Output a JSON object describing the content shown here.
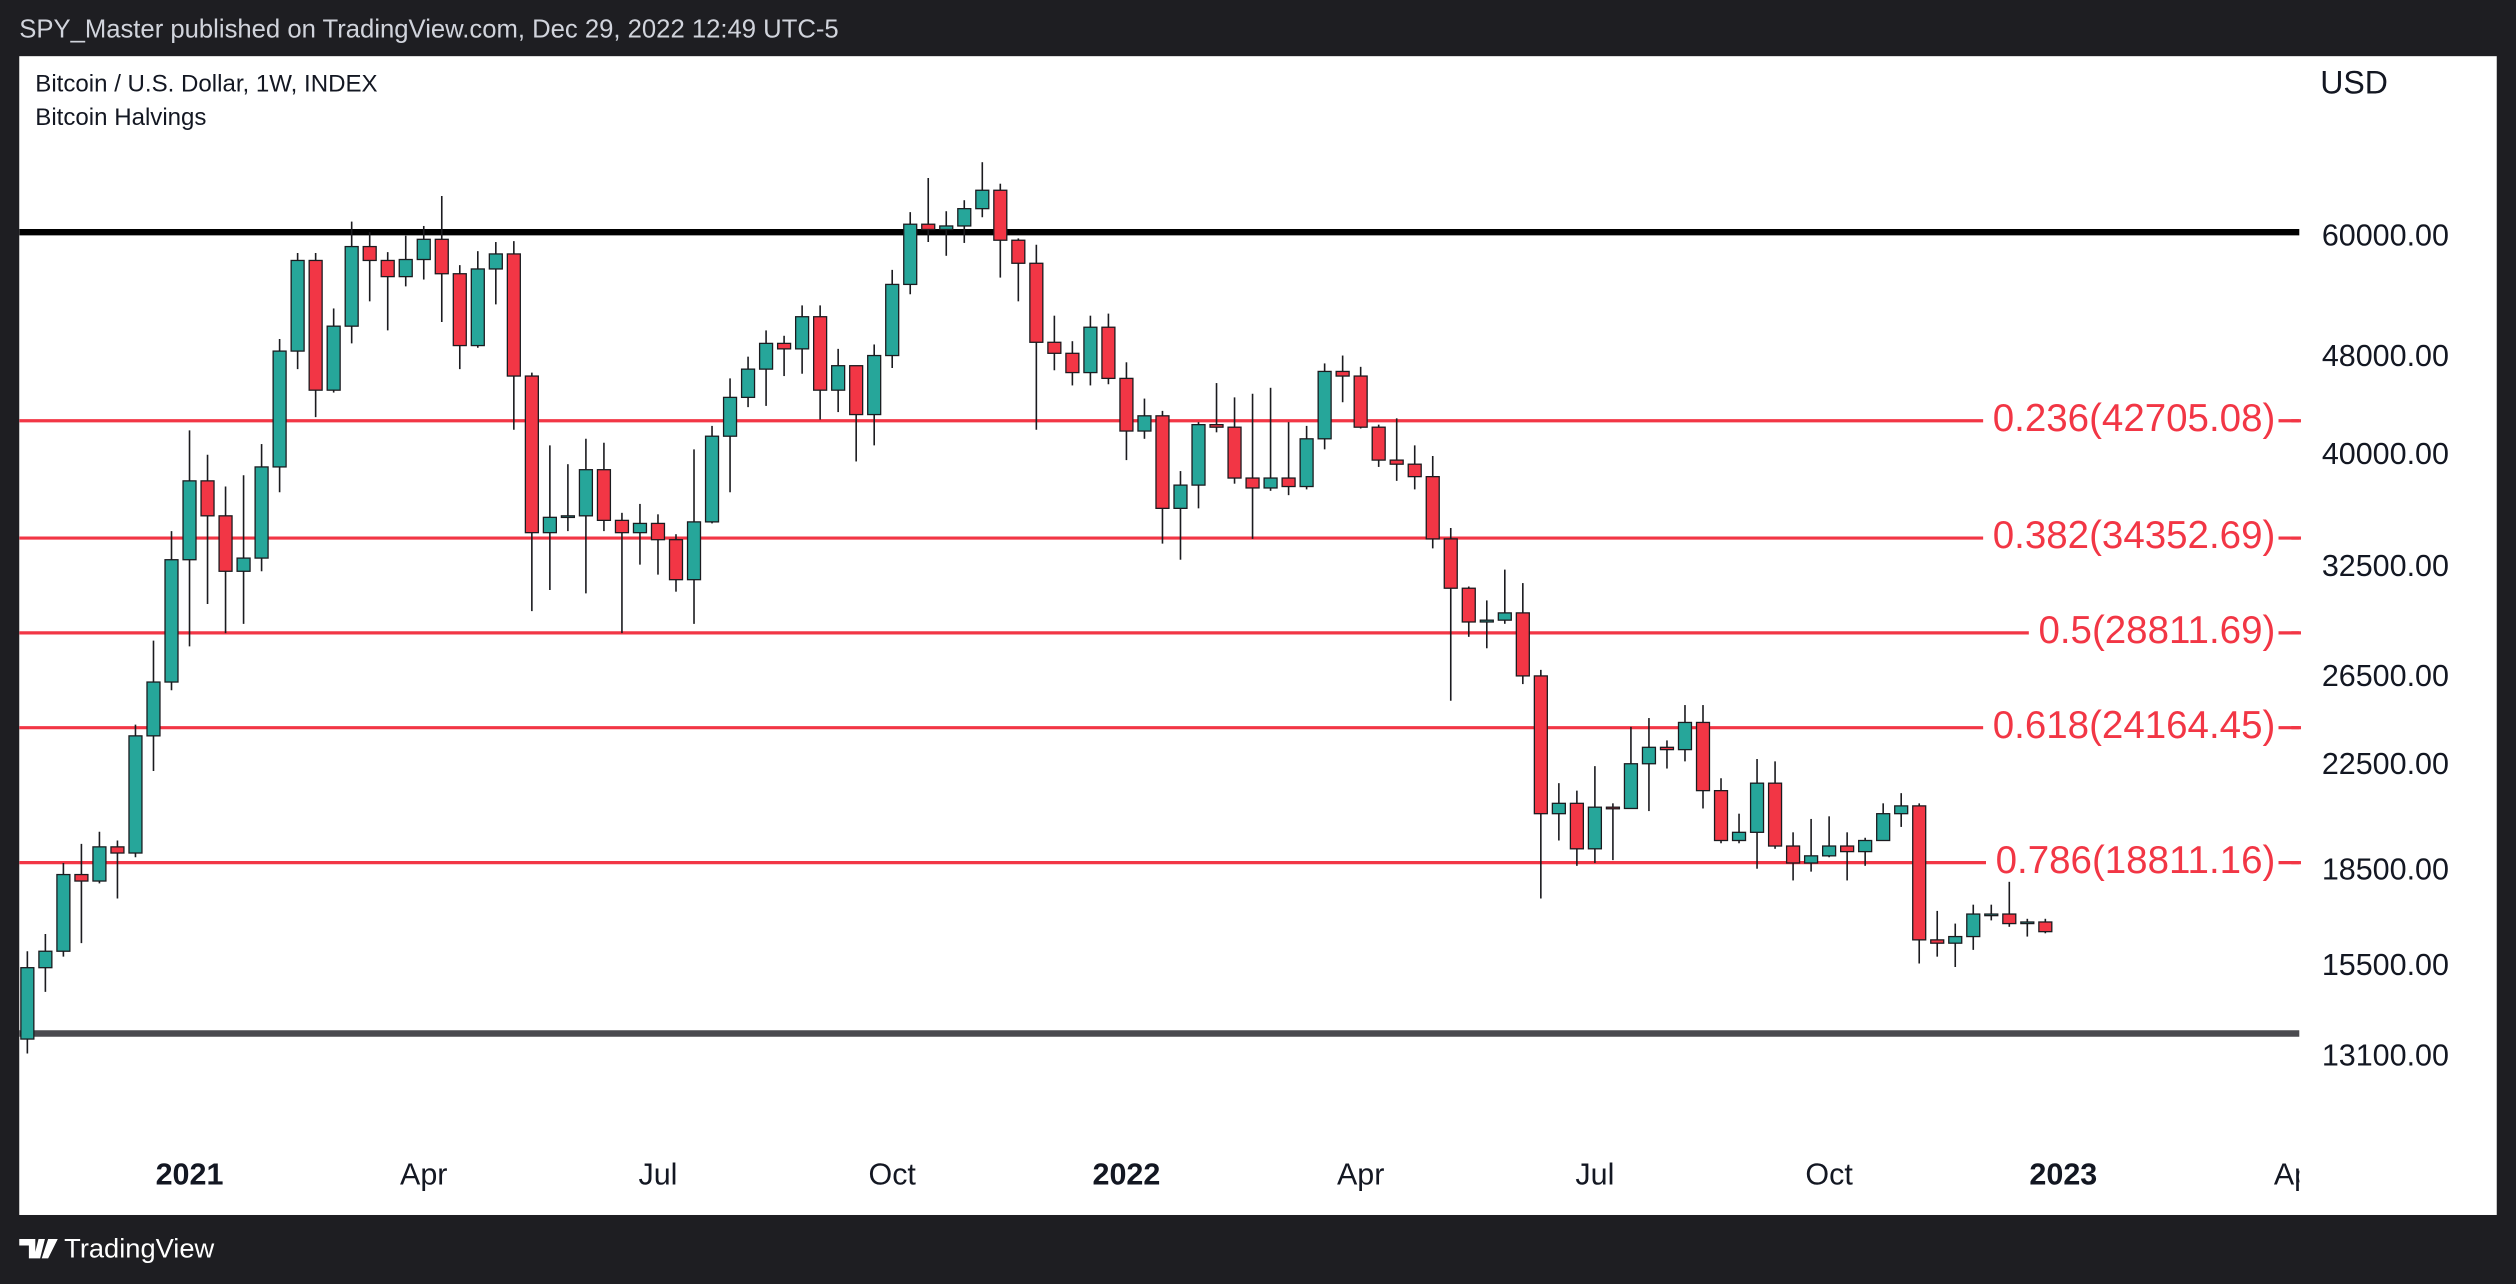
{
  "header": {
    "text": "SPY_Master published on TradingView.com, Dec 29, 2022 12:49 UTC-5"
  },
  "chart_data": {
    "type": "candlestick",
    "title": "Bitcoin / U.S. Dollar, 1W, INDEX",
    "subtitle": "Bitcoin Halvings",
    "y_axis_label": "USD",
    "up_color": "#26a69a",
    "down_color": "#f23645",
    "log_scale": true,
    "ylim": [
      11087,
      84000
    ],
    "yticks": [
      {
        "value": 60000,
        "label": "60000.00"
      },
      {
        "value": 48000,
        "label": "48000.00"
      },
      {
        "value": 40000,
        "label": "40000.00"
      },
      {
        "value": 32500,
        "label": "32500.00"
      },
      {
        "value": 26500,
        "label": "26500.00"
      },
      {
        "value": 22500,
        "label": "22500.00"
      },
      {
        "value": 18500,
        "label": "18500.00"
      },
      {
        "value": 15500,
        "label": "15500.00"
      },
      {
        "value": 13100,
        "label": "13100.00"
      }
    ],
    "xlim": [
      -0.45,
      126.1
    ],
    "xticks": [
      {
        "value": 9,
        "label": "2021"
      },
      {
        "value": 22,
        "label": "Apr"
      },
      {
        "value": 35,
        "label": "Jul"
      },
      {
        "value": 48,
        "label": "Oct"
      },
      {
        "value": 61,
        "label": "2022"
      },
      {
        "value": 74,
        "label": "Apr"
      },
      {
        "value": 87,
        "label": "Jul"
      },
      {
        "value": 100,
        "label": "Oct"
      },
      {
        "value": 113,
        "label": "2023"
      },
      {
        "value": 126,
        "label": "Apr"
      }
    ],
    "open": [
      13560,
      15480,
      15960,
      18400,
      18180,
      19370,
      19150,
      23800,
      26300,
      33000,
      38200,
      35800,
      32300,
      33100,
      39200,
      48600,
      57500,
      45200,
      50900,
      59000,
      57500,
      55800,
      57600,
      59800,
      56100,
      49100,
      56600,
      58200,
      46400,
      34700,
      35700,
      35800,
      39000,
      35500,
      34700,
      35300,
      34250,
      31800,
      35400,
      41500,
      44600,
      47000,
      49300,
      48800,
      51800,
      45200,
      47300,
      43200,
      48200,
      55000,
      61500,
      60900,
      61300,
      63300,
      65500,
      59700,
      57200,
      49400,
      48400,
      46700,
      50800,
      46200,
      41900,
      43100,
      36300,
      37900,
      42400,
      42200,
      38400,
      37700,
      38400,
      37800,
      41300,
      46800,
      46400,
      42200,
      39700,
      39400,
      38500,
      34300,
      31300,
      29400,
      29500,
      29900,
      26600,
      20600,
      21000,
      19300,
      20850,
      20800,
      22600,
      23300,
      23200,
      24400,
      21500,
      19600,
      19900,
      21800,
      19400,
      18800,
      19050,
      19400,
      19200,
      19600,
      20600,
      20900,
      16300,
      16200,
      16400,
      17100,
      17100,
      16800,
      16850
    ],
    "high": [
      15960,
      16480,
      18800,
      19480,
      19920,
      19600,
      24300,
      28400,
      34800,
      41950,
      40100,
      37800,
      38600,
      40900,
      49700,
      58300,
      58300,
      52600,
      61800,
      60600,
      58400,
      60200,
      61300,
      64800,
      57000,
      58500,
      59500,
      59600,
      46700,
      40800,
      39400,
      41300,
      41000,
      36000,
      36600,
      35900,
      34600,
      40500,
      42300,
      46200,
      48100,
      50500,
      50000,
      52900,
      52900,
      48800,
      47300,
      49200,
      56500,
      62900,
      67000,
      63000,
      64300,
      69000,
      66300,
      59900,
      59200,
      51900,
      49500,
      51900,
      52100,
      47600,
      44500,
      43500,
      38900,
      42600,
      45800,
      44600,
      44900,
      45400,
      42600,
      42300,
      47500,
      48200,
      47200,
      42400,
      42900,
      40800,
      40000,
      35000,
      31400,
      30600,
      32400,
      31600,
      26900,
      21800,
      21500,
      22500,
      21000,
      24200,
      24600,
      23600,
      25200,
      25200,
      22000,
      20600,
      22800,
      22700,
      19900,
      20400,
      20500,
      19900,
      19700,
      21000,
      21400,
      21000,
      17200,
      16800,
      17400,
      17400,
      18400,
      16950,
      16950
    ],
    "low": [
      13200,
      14800,
      15800,
      16200,
      18100,
      17600,
      19000,
      22300,
      25900,
      28100,
      30400,
      28800,
      29300,
      32300,
      37400,
      47000,
      43000,
      45000,
      49300,
      53300,
      50500,
      54800,
      55500,
      51300,
      47000,
      48900,
      53000,
      42000,
      30000,
      31200,
      34800,
      31000,
      34800,
      28800,
      32700,
      32100,
      31100,
      29300,
      35300,
      37400,
      43800,
      43900,
      46400,
      46600,
      42800,
      43400,
      39600,
      40800,
      47100,
      54000,
      59500,
      58000,
      59400,
      62300,
      55700,
      53300,
      42000,
      46900,
      45600,
      45600,
      45700,
      39700,
      41300,
      34000,
      33000,
      36300,
      41800,
      38000,
      34300,
      37500,
      37200,
      37600,
      40500,
      44200,
      42100,
      39200,
      38200,
      37600,
      33700,
      25400,
      28600,
      28000,
      29300,
      26200,
      17600,
      19600,
      18700,
      18800,
      18900,
      20800,
      20700,
      22400,
      22700,
      20800,
      19500,
      19500,
      18600,
      19300,
      18200,
      18500,
      19000,
      18200,
      18700,
      19600,
      20100,
      15600,
      15800,
      15500,
      16000,
      16900,
      16700,
      16400,
      16500
    ],
    "close": [
      15480,
      15960,
      18400,
      18180,
      19370,
      19150,
      23800,
      26300,
      33000,
      38200,
      35800,
      32300,
      33100,
      39200,
      48600,
      57500,
      45200,
      50900,
      59000,
      57500,
      55800,
      57600,
      59800,
      56100,
      49100,
      56600,
      58200,
      46400,
      34700,
      35700,
      35800,
      39000,
      35500,
      34700,
      35300,
      34250,
      31800,
      35400,
      41500,
      44600,
      47000,
      49300,
      48800,
      51800,
      45200,
      47300,
      43200,
      48200,
      55000,
      61500,
      60900,
      61300,
      63300,
      65500,
      59700,
      57200,
      49400,
      48400,
      46700,
      50800,
      46200,
      41900,
      43100,
      36300,
      37900,
      42400,
      42200,
      38400,
      37700,
      38400,
      37800,
      41300,
      46800,
      46400,
      42200,
      39700,
      39400,
      38500,
      34300,
      31300,
      29400,
      29500,
      29900,
      26600,
      20600,
      21000,
      19300,
      20850,
      20800,
      22600,
      23300,
      23200,
      24400,
      21500,
      19600,
      19900,
      21800,
      19400,
      18800,
      19050,
      19400,
      19200,
      19600,
      20600,
      20900,
      16300,
      16200,
      16400,
      17100,
      17100,
      16800,
      16850,
      16550
    ],
    "levels": [
      {
        "label": "0.236(42705.08)",
        "value": 42705.08,
        "color": "#f23645"
      },
      {
        "label": "0.382(34352.69)",
        "value": 34352.69,
        "color": "#f23645"
      },
      {
        "label": "0.5(28811.69)",
        "value": 28811.69,
        "color": "#f23645"
      },
      {
        "label": "0.618(24164.45)",
        "value": 24164.45,
        "color": "#f23645"
      },
      {
        "label": "0.786(18811.16)",
        "value": 18811.16,
        "color": "#f23645"
      }
    ],
    "lines": [
      {
        "value": 60600,
        "color": "#000000"
      },
      {
        "value": 13700,
        "color": "#4a4a4f"
      }
    ]
  },
  "footer": {
    "brand": "TradingView"
  }
}
